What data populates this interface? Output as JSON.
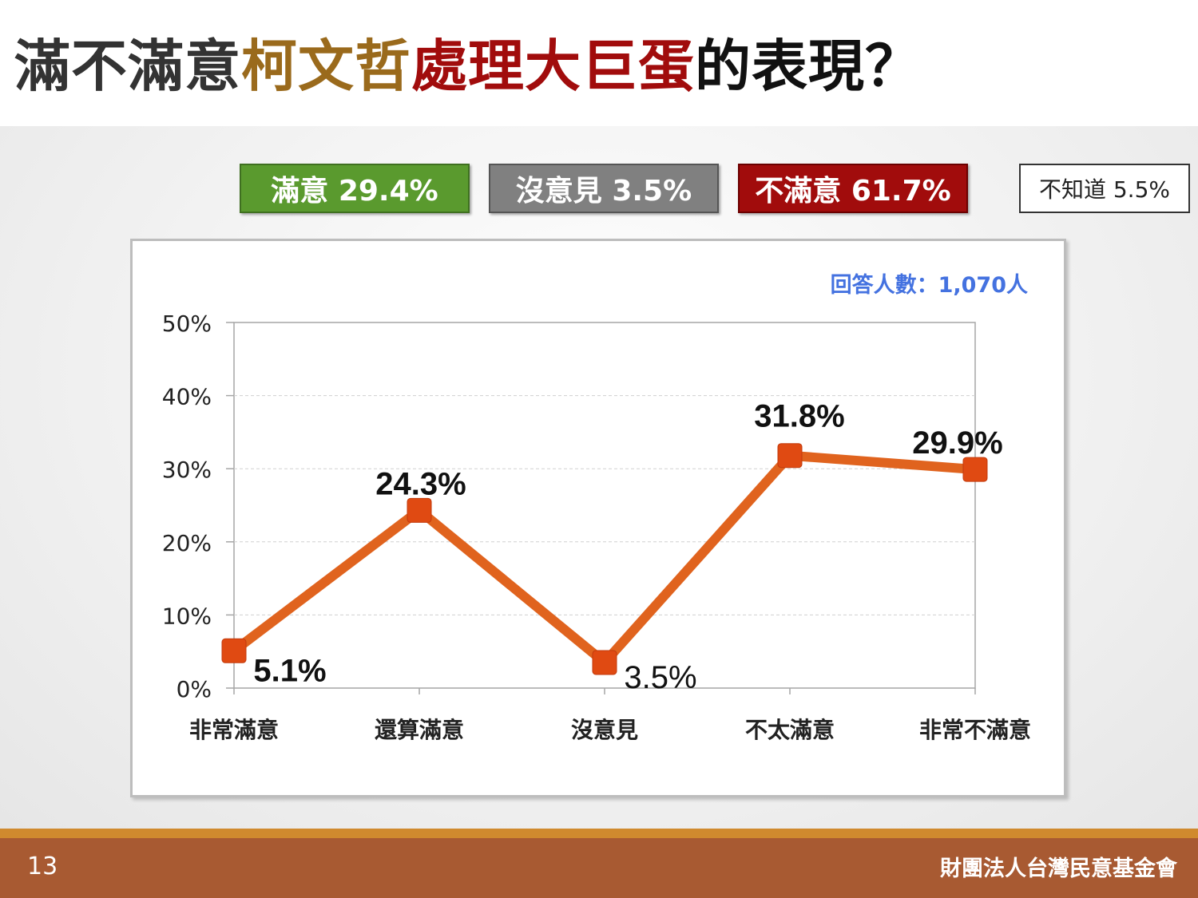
{
  "title": {
    "parts": [
      {
        "text": "滿不滿意",
        "color": "#333333"
      },
      {
        "text": "柯文哲",
        "color": "#9a6a1c"
      },
      {
        "text": "處理大巨蛋",
        "color": "#a10c0c"
      },
      {
        "text": "的表現？",
        "color": "#111111"
      }
    ]
  },
  "summary": {
    "satisfied": "滿意 29.4%",
    "no_opinion": "沒意見 3.5%",
    "dissatisfied": "不滿意 61.7%",
    "dont_know": "不知道 5.5%"
  },
  "colors": {
    "line": "#e0631e",
    "marker": "#e04a12",
    "satisfied": "#5a9a2e",
    "no_opinion": "#808080",
    "dissatisfied": "#a10c0c",
    "respondent_text": "#4472e0"
  },
  "chart_data": {
    "type": "line",
    "annotation": "回答人數：1,070人",
    "categories": [
      "非常滿意",
      "還算滿意",
      "沒意見",
      "不太滿意",
      "非常不滿意"
    ],
    "values": [
      5.1,
      24.3,
      3.5,
      31.8,
      29.9
    ],
    "data_labels": [
      "5.1%",
      "24.3%",
      "3.5%",
      "31.8%",
      "29.9%"
    ],
    "y_ticks": [
      "0%",
      "10%",
      "20%",
      "30%",
      "40%",
      "50%"
    ],
    "ylim": [
      0,
      50
    ],
    "grid": true,
    "legend": "none"
  },
  "footer": {
    "page": "13",
    "org": "財團法人台灣民意基金會"
  }
}
